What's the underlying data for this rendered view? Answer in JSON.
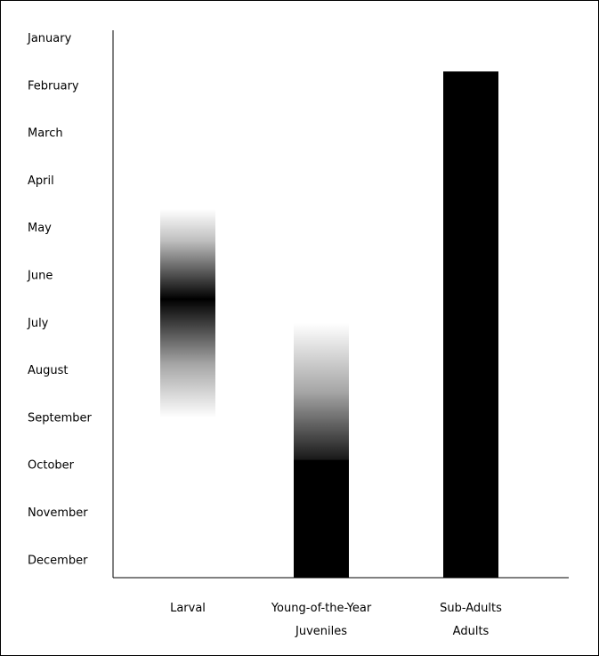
{
  "chart_data": {
    "type": "bar",
    "title": "",
    "xlabel": "",
    "ylabel": "",
    "grid": false,
    "orientation": "vertical-timeline",
    "y_axis": {
      "months": [
        "January",
        "February",
        "March",
        "April",
        "May",
        "June",
        "July",
        "August",
        "September",
        "October",
        "November",
        "December"
      ],
      "direction": "top-to-bottom"
    },
    "categories": [
      [
        "Larval"
      ],
      [
        "Young-of-the-Year",
        "Juveniles"
      ],
      [
        "Sub-Adults",
        "Adults"
      ]
    ],
    "series": [
      {
        "category_index": 0,
        "start_month": 3.6,
        "end_month": 8.0,
        "peak_month": 5.5,
        "style": "gradient-fade-both",
        "color": "#000000"
      },
      {
        "category_index": 1,
        "start_month": 6.0,
        "end_month": 12.4,
        "solid_from_month": 8.9,
        "style": "gradient-fade-in-then-solid",
        "color": "#000000"
      },
      {
        "category_index": 2,
        "start_month": 0.7,
        "end_month": 12.4,
        "style": "solid",
        "color": "#000000"
      }
    ]
  }
}
